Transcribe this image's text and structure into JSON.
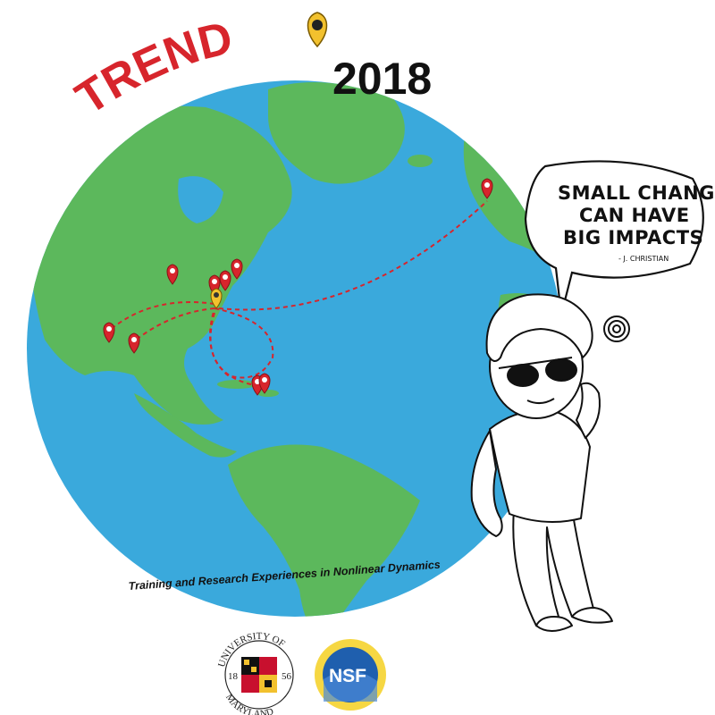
{
  "title": {
    "word": "TREND",
    "year": "2018"
  },
  "speech_bubble": {
    "lines": [
      "SMALL CHANGES",
      "CAN HAVE",
      "BIG IMPACTS"
    ],
    "attribution": "- J. CHRISTIAN"
  },
  "caption": "Training and Research Experiences in Nonlinear Dynamics",
  "logos": {
    "umd": {
      "top": "UNIVERSITY OF",
      "bottom": "MARYLAND",
      "year_left": "18",
      "year_right": "56"
    },
    "nsf": {
      "label": "NSF"
    }
  },
  "colors": {
    "ocean": "#3aa9dc",
    "land": "#5cb85c",
    "pin_red": "#d7252c",
    "pin_gold": "#f2c12e",
    "route": "#d7252c"
  },
  "icons": [
    "map-pin-icon",
    "globe",
    "cartoon-student",
    "umd-seal-icon",
    "nsf-logo-icon"
  ]
}
